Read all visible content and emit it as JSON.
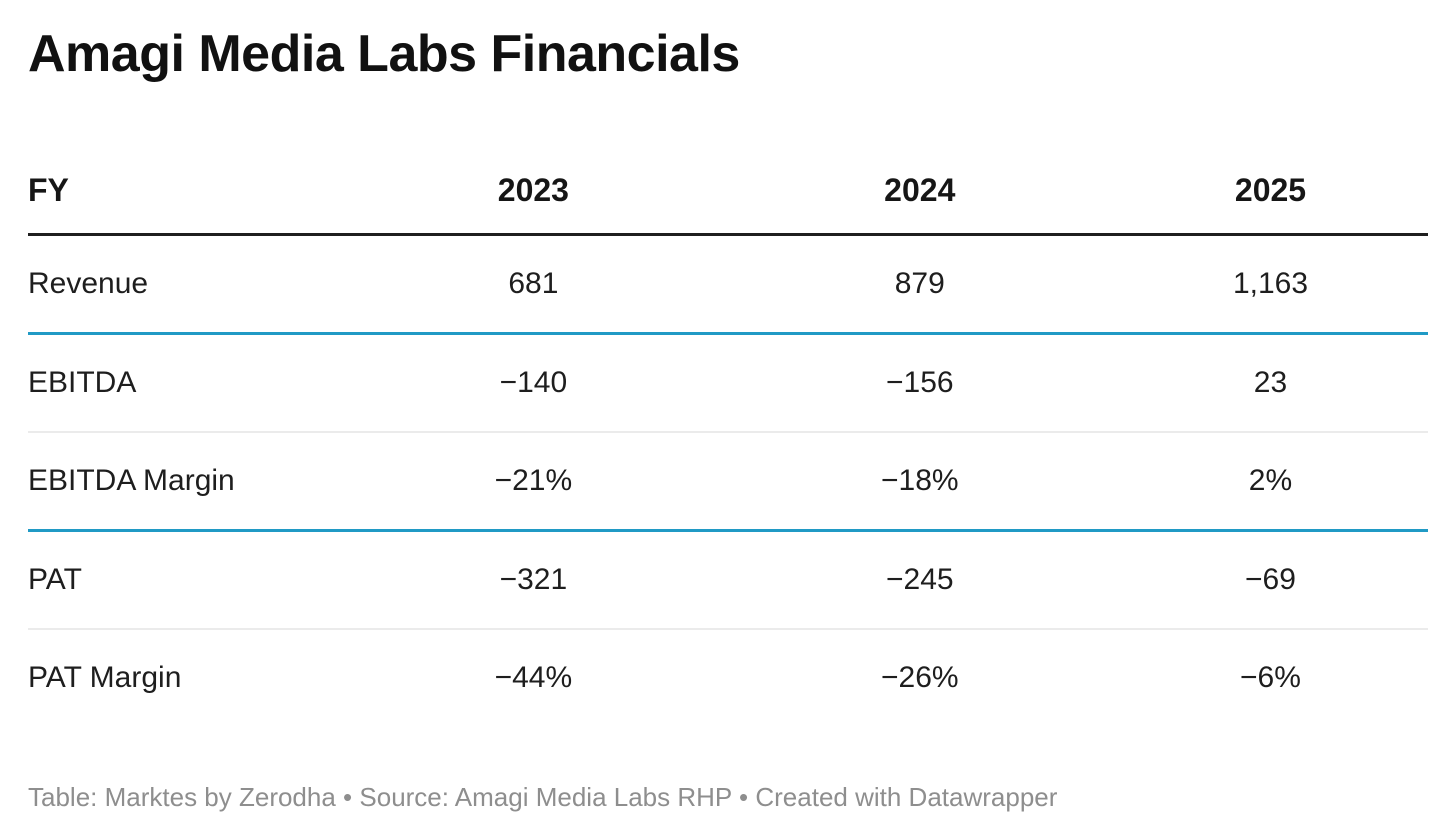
{
  "title": "Amagi Media Labs Financials",
  "colors": {
    "accent_blue": "#209ac5",
    "header_rule": "#1f1f1f",
    "row_rule_gray": "#ebebeb",
    "footer_gray": "#8e8e8e",
    "text": "#1e1e1e"
  },
  "chart_data": {
    "type": "table",
    "title": "Amagi Media Labs Financials",
    "columns": [
      "FY",
      "2023",
      "2024",
      "2025"
    ],
    "rows": [
      {
        "label": "Revenue",
        "values": [
          "681",
          "879",
          "1,163"
        ],
        "separator_below": "blue"
      },
      {
        "label": "EBITDA",
        "values": [
          "−140",
          "−156",
          "23"
        ],
        "separator_below": "gray"
      },
      {
        "label": "EBITDA Margin",
        "values": [
          "−21%",
          "−18%",
          "2%"
        ],
        "separator_below": "blue"
      },
      {
        "label": "PAT",
        "values": [
          "−321",
          "−245",
          "−69"
        ],
        "separator_below": "gray"
      },
      {
        "label": "PAT Margin",
        "values": [
          "−44%",
          "−26%",
          "−6%"
        ],
        "separator_below": "none"
      }
    ]
  },
  "footer": {
    "table_label": "Table: ",
    "table_credit": "Marktes by Zerodha",
    "separator": " • ",
    "source_label": "Source: ",
    "source_text": "Amagi Media Labs RHP",
    "created_label": "Created with ",
    "created_credit": "Datawrapper"
  }
}
